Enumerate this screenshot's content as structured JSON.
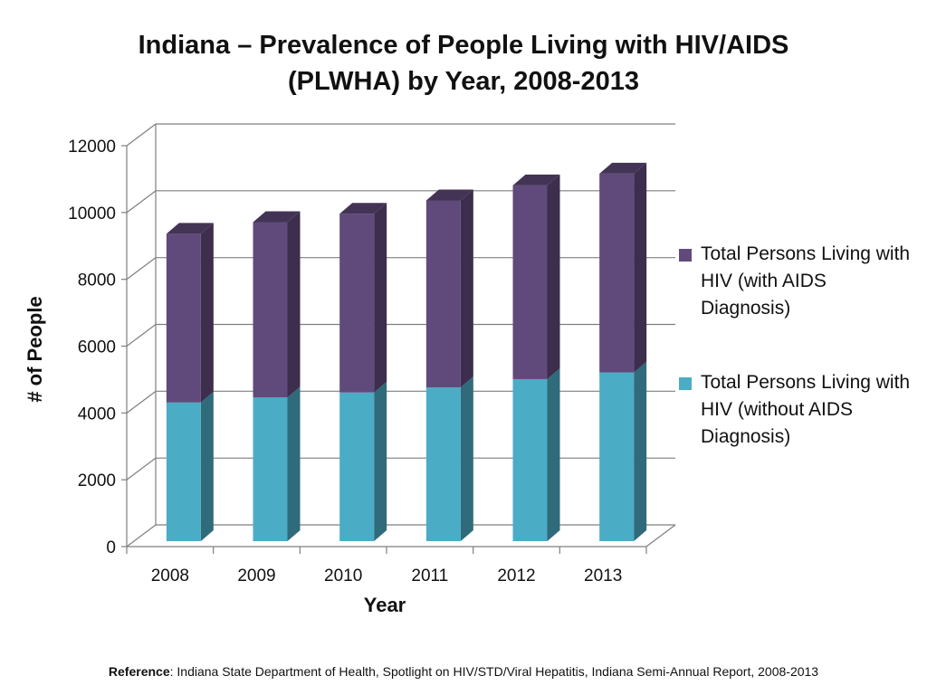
{
  "title_line1": "Indiana – Prevalence of People Living with HIV/AIDS",
  "title_line2": "(PLWHA) by Year, 2008-2013",
  "reference_label": "Reference",
  "reference_text": ":  Indiana State Department of Health, Spotlight on HIV/STD/Viral Hepatitis, Indiana Semi-Annual Report, 2008-2013",
  "colors": {
    "with_aids": "#604a7b",
    "without_aids": "#4bacc6",
    "gridline": "#7f7f7f"
  },
  "chart_data": {
    "type": "bar",
    "stacked": true,
    "categories": [
      "2008",
      "2009",
      "2010",
      "2011",
      "2012",
      "2013"
    ],
    "series": [
      {
        "name": "Total Persons Living with HIV (without AIDS Diagnosis)",
        "values": [
          4150,
          4300,
          4450,
          4600,
          4850,
          5050
        ]
      },
      {
        "name": "Total Persons Living with HIV (with AIDS Diagnosis)",
        "values": [
          5050,
          5250,
          5350,
          5600,
          5800,
          5950
        ]
      }
    ],
    "xlabel": "Year",
    "ylabel": "# of People",
    "ylim": [
      0,
      12000
    ],
    "yticks": [
      "0",
      "2000",
      "4000",
      "6000",
      "8000",
      "10000",
      "12000"
    ],
    "grid": true,
    "legend_position": "right"
  }
}
